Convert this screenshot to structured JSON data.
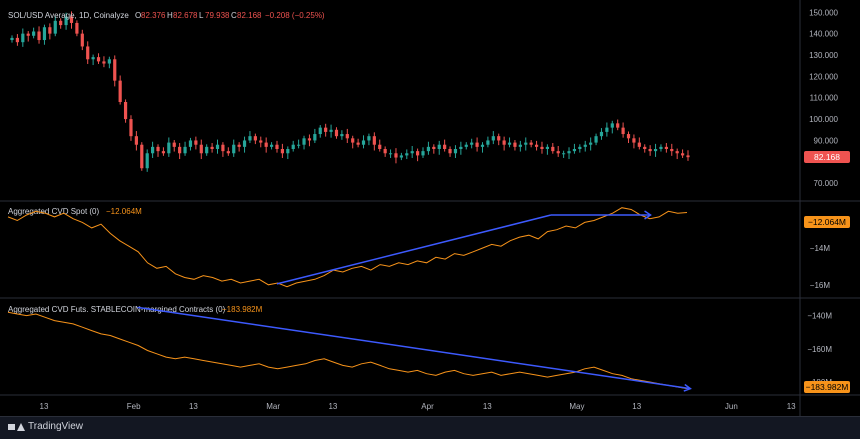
{
  "colors": {
    "background": "#000000",
    "up": "#26a69a",
    "down": "#ef5350",
    "cvd": "#f7931a",
    "trend": "#3d5afe",
    "axis_text": "#b2b5be",
    "divider": "#2a2e39"
  },
  "footer": {
    "brand": "TradingView",
    "logo_icon": "tradingview-logo-icon"
  },
  "chart_data": [
    {
      "type": "candlestick",
      "title": "SOL/USD Average, 1D, Coinalyze",
      "ohlc_legend": {
        "o_label": "O",
        "o": "82.376",
        "h_label": "H",
        "h": "82.678",
        "l_label": "L",
        "l": "79.938",
        "c_label": "C",
        "c": "82.168",
        "change": "−0.208 (−0.25%)"
      },
      "last_price": "82.168",
      "y_ticks": [
        "150.000",
        "140.000",
        "130.000",
        "120.000",
        "110.000",
        "100.000",
        "90.000",
        "70.000"
      ],
      "y_tick_values": [
        150,
        140,
        130,
        120,
        110,
        100,
        90,
        70
      ],
      "ylim": [
        64,
        152
      ],
      "x_ticks": [
        "13",
        "Feb",
        "13",
        "Mar",
        "13",
        "Apr",
        "13",
        "May",
        "13",
        "Jun",
        "13"
      ],
      "x_tick_index": [
        0,
        18,
        30,
        46,
        58,
        77,
        89,
        107,
        119,
        138,
        150
      ],
      "x_total_days": 158,
      "close": [
        138,
        136,
        140,
        139,
        141,
        137,
        143,
        140,
        146,
        144,
        148,
        145,
        140,
        134,
        128,
        129,
        127,
        126,
        128,
        118,
        108,
        100,
        92,
        88,
        77,
        84,
        87,
        85,
        84,
        89,
        87,
        84,
        87,
        90,
        88,
        84,
        87,
        86,
        88,
        85,
        84,
        88,
        87,
        90,
        92,
        90,
        89,
        87,
        88,
        86,
        84,
        86,
        88,
        88,
        91,
        90,
        93,
        96,
        94,
        95,
        92,
        93,
        91,
        89,
        88,
        90,
        92,
        88,
        86,
        84,
        84,
        82,
        83,
        84,
        85,
        83,
        85,
        87,
        86,
        88,
        86,
        84,
        86,
        87,
        88,
        89,
        87,
        88,
        90,
        92,
        90,
        88,
        89,
        87,
        88,
        89,
        88,
        87,
        86,
        87,
        85,
        84,
        84,
        85,
        86,
        87,
        88,
        89,
        92,
        94,
        96,
        98,
        96,
        93,
        91,
        89,
        87,
        86,
        85,
        86,
        87,
        86,
        85,
        84,
        83,
        82.168
      ],
      "open_first": 137
    },
    {
      "type": "line",
      "title": "Aggregated CVD Spot (0)",
      "current_value": "−12.064M",
      "y_ticks": [
        "−14M",
        "−16M"
      ],
      "y_tick_values": [
        -14,
        -16
      ],
      "ylim": [
        -16.5,
        -11.6
      ],
      "values": [
        -12.3,
        -12.5,
        -12.2,
        -12.0,
        -12.1,
        -12.3,
        -12.1,
        -12.4,
        -12.6,
        -12.9,
        -12.7,
        -13.2,
        -13.6,
        -13.9,
        -14.2,
        -14.8,
        -15.1,
        -15.0,
        -15.4,
        -15.6,
        -15.7,
        -15.5,
        -15.6,
        -15.8,
        -15.7,
        -15.9,
        -15.8,
        -15.7,
        -16.0,
        -15.9,
        -16.1,
        -15.9,
        -15.8,
        -15.7,
        -15.5,
        -15.2,
        -15.3,
        -15.1,
        -15.0,
        -15.2,
        -14.9,
        -15.0,
        -14.8,
        -14.9,
        -14.7,
        -14.8,
        -14.5,
        -14.6,
        -14.3,
        -14.4,
        -14.2,
        -14.0,
        -13.8,
        -13.9,
        -13.6,
        -13.4,
        -13.3,
        -13.5,
        -13.1,
        -13.0,
        -12.8,
        -12.9,
        -12.6,
        -12.5,
        -12.3,
        -12.1,
        -11.8,
        -11.9,
        -12.2,
        -12.4,
        -12.3,
        -12.0,
        -12.1,
        -12.064
      ]
    },
    {
      "type": "line",
      "title": "Aggregated CVD Futs. STABLECOIN-margined Contracts (0)",
      "current_value": "−183.982M",
      "y_ticks": [
        "−140M",
        "−160M",
        "−180M"
      ],
      "y_tick_values": [
        -140,
        -160,
        -180
      ],
      "ylim": [
        -186,
        -133
      ],
      "values": [
        -138,
        -139,
        -140,
        -139,
        -141,
        -143,
        -144,
        -145,
        -147,
        -149,
        -151,
        -152,
        -154,
        -156,
        -158,
        -161,
        -163,
        -165,
        -166,
        -165,
        -166,
        -167,
        -168,
        -169,
        -170,
        -171,
        -170,
        -169,
        -171,
        -172,
        -171,
        -170,
        -169,
        -167,
        -166,
        -168,
        -170,
        -171,
        -169,
        -168,
        -170,
        -172,
        -173,
        -174,
        -173,
        -175,
        -176,
        -174,
        -173,
        -175,
        -176,
        -175,
        -174,
        -176,
        -175,
        -174,
        -175,
        -176,
        -177,
        -176,
        -175,
        -174,
        -172,
        -171,
        -173,
        -175,
        -176,
        -178,
        -179,
        -180,
        -181,
        -182,
        -183,
        -183.982
      ],
      "trendline": {
        "from": {
          "x_day": 26,
          "y": -135
        },
        "to": {
          "x_day": 137,
          "y": -184
        }
      }
    }
  ],
  "annotations": {
    "spot_trend": {
      "from": {
        "x_day": 54,
        "y": -15.95
      },
      "to": {
        "x_day": 109,
        "y": -12.2
      }
    },
    "spot_flat": {
      "from": {
        "x_day": 109,
        "y": -12.2
      },
      "to": {
        "x_day": 129,
        "y": -12.2
      }
    }
  }
}
